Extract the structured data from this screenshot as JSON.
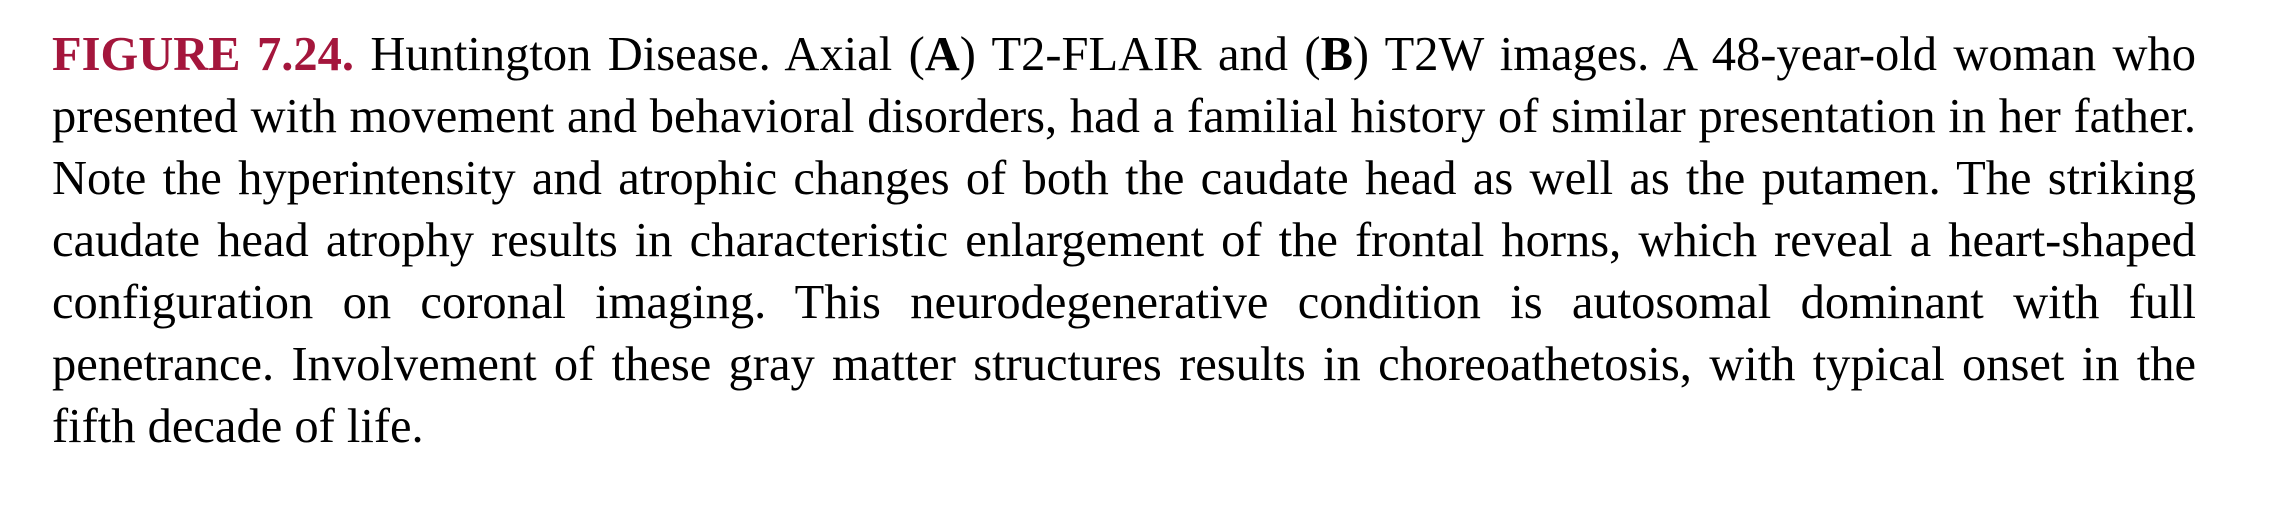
{
  "caption": {
    "figure_label": "FIGURE 7.24.",
    "title": "Huntington Disease.",
    "text_axial": "Axial",
    "panel_a": "A",
    "text_a_desc": "T2-FLAIR and",
    "panel_b": "B",
    "text_b_desc": "T2W images.",
    "body": "A 48-year-old woman who presented with movement and behavioral disorders, had a familial history of similar presentation in her father. Note the hyperintensity and atrophic changes of both the caudate head as well as the putamen. The striking caudate head atrophy results in characteristic enlargement of the frontal horns, which reveal a heart-shaped configuration on coronal imaging. This neurodegenerative condition is autosomal dominant with full penetrance. Involvement of these gray matter structures results in choreoathetosis, with typical onset in the fifth decade of life."
  },
  "colors": {
    "figure_label": "#a4163c",
    "text": "#000000",
    "background": "#ffffff"
  }
}
